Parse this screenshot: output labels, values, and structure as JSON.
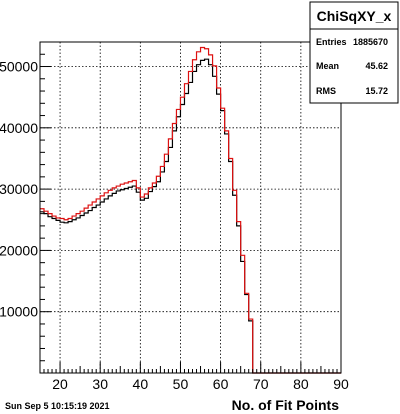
{
  "chart_data": {
    "type": "histogram",
    "xlabel": "No. of Fit Points",
    "ylabel": "",
    "xlim": [
      15,
      90
    ],
    "ylim": [
      0,
      54000
    ],
    "bin_width": 1,
    "x_ticks": [
      20,
      30,
      40,
      50,
      60,
      70,
      80,
      90
    ],
    "y_ticks": [
      10000,
      20000,
      30000,
      40000,
      50000
    ],
    "grid": true,
    "series": [
      {
        "color": "#000000",
        "x": [
          15,
          16,
          17,
          18,
          19,
          20,
          21,
          22,
          23,
          24,
          25,
          26,
          27,
          28,
          29,
          30,
          31,
          32,
          33,
          34,
          35,
          36,
          37,
          38,
          39,
          40,
          41,
          42,
          43,
          44,
          45,
          46,
          47,
          48,
          49,
          50,
          51,
          52,
          53,
          54,
          55,
          56,
          57,
          58,
          59,
          60,
          61,
          62,
          63,
          64,
          65,
          66,
          67,
          68,
          69,
          70,
          71,
          72,
          73,
          74,
          75,
          76,
          77,
          78,
          79,
          80,
          81,
          82,
          83,
          84,
          85,
          86,
          87,
          88,
          89
        ],
        "values": [
          26300,
          26000,
          25500,
          25200,
          24900,
          24600,
          24500,
          24700,
          25000,
          25300,
          25700,
          26100,
          26500,
          27000,
          27400,
          27900,
          28400,
          28900,
          29300,
          29700,
          29900,
          30100,
          30300,
          30500,
          29500,
          28200,
          28500,
          29600,
          30400,
          31200,
          32800,
          34500,
          36800,
          39500,
          41800,
          43800,
          45600,
          47400,
          49200,
          50300,
          51000,
          51200,
          50300,
          48400,
          45500,
          42800,
          39000,
          34500,
          29000,
          24000,
          18200,
          12800,
          8500,
          0,
          0,
          0,
          0,
          0,
          0,
          0,
          0,
          0,
          0,
          0,
          0,
          0,
          0,
          0,
          0,
          0,
          0,
          0,
          0,
          0,
          0
        ]
      },
      {
        "color": "#dd1111",
        "x": [
          15,
          16,
          17,
          18,
          19,
          20,
          21,
          22,
          23,
          24,
          25,
          26,
          27,
          28,
          29,
          30,
          31,
          32,
          33,
          34,
          35,
          36,
          37,
          38,
          39,
          40,
          41,
          42,
          43,
          44,
          45,
          46,
          47,
          48,
          49,
          50,
          51,
          52,
          53,
          54,
          55,
          56,
          57,
          58,
          59,
          60,
          61,
          62,
          63,
          64,
          65,
          66,
          67,
          68,
          69,
          70,
          71,
          72,
          73,
          74,
          75,
          76,
          77,
          78,
          79,
          80,
          81,
          82,
          83,
          84,
          85,
          86,
          87,
          88,
          89
        ],
        "values": [
          26800,
          26400,
          26000,
          25600,
          25300,
          25200,
          25000,
          25200,
          25600,
          26000,
          26400,
          26900,
          27400,
          27900,
          28400,
          28900,
          29400,
          29800,
          30200,
          30500,
          30800,
          31000,
          31200,
          31400,
          30200,
          28700,
          29200,
          30200,
          31000,
          32100,
          33700,
          35700,
          38200,
          40700,
          43000,
          45000,
          47200,
          49200,
          51100,
          52400,
          53100,
          52900,
          51900,
          50100,
          46500,
          43200,
          39500,
          35000,
          29800,
          24700,
          19200,
          13000,
          8800,
          0,
          0,
          0,
          0,
          0,
          0,
          0,
          0,
          0,
          0,
          0,
          0,
          0,
          0,
          0,
          0,
          0,
          0,
          0,
          0,
          0,
          0
        ]
      }
    ]
  },
  "stats_box": {
    "title": "ChiSqXY_x",
    "rows": [
      {
        "label": "Entries",
        "value": "1885670"
      },
      {
        "label": "Mean",
        "value": "45.62"
      },
      {
        "label": "RMS",
        "value": "15.72"
      }
    ]
  },
  "timestamp": "Sun Sep  5 10:15:19 2021"
}
